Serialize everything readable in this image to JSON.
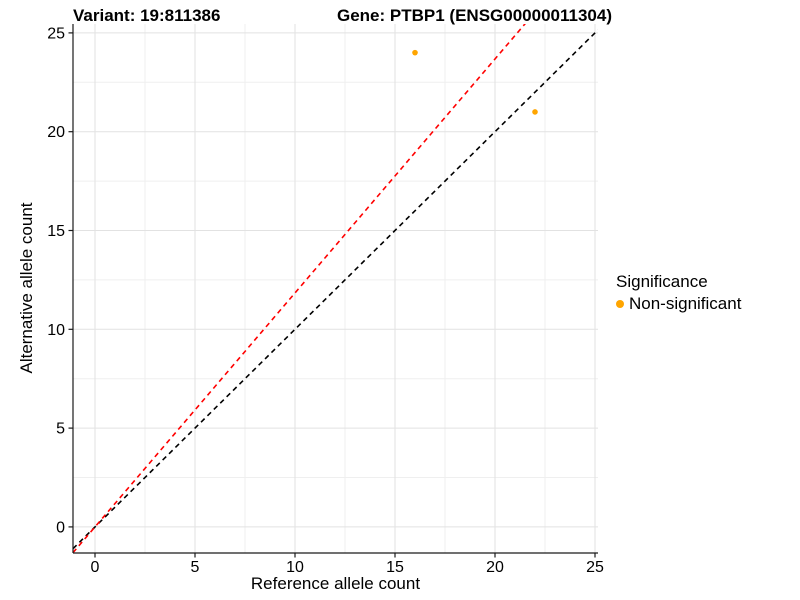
{
  "title": {
    "left": "Variant: 19:811386",
    "right": "Gene: PTBP1 (ENSG00000011304)"
  },
  "chart_data": {
    "type": "scatter",
    "xlabel": "Reference allele count",
    "ylabel": "Alternative allele count",
    "xlim": [
      -1.1,
      25.15
    ],
    "ylim": [
      -1.32,
      25.45
    ],
    "x_ticks": [
      0,
      5,
      10,
      15,
      20,
      25
    ],
    "y_ticks": [
      0,
      5,
      10,
      15,
      20,
      25
    ],
    "minor_step": 2.5,
    "grid": true,
    "legend_position": "right",
    "point_color": "#FFA500",
    "points": [
      {
        "x": 16,
        "y": 24,
        "series": "Non-significant"
      },
      {
        "x": 22,
        "y": 21,
        "series": "Non-significant"
      }
    ],
    "lines": [
      {
        "name": "identity-line",
        "slope": 1.0,
        "intercept": 0,
        "color": "#000000",
        "style": "dashed"
      },
      {
        "name": "expected-ratio-line",
        "slope": 1.184,
        "intercept": 0,
        "color": "#FF0000",
        "style": "dashed"
      }
    ],
    "legend": {
      "title": "Significance",
      "items": [
        {
          "label": "Non-significant",
          "color": "#FFA500"
        }
      ]
    }
  }
}
